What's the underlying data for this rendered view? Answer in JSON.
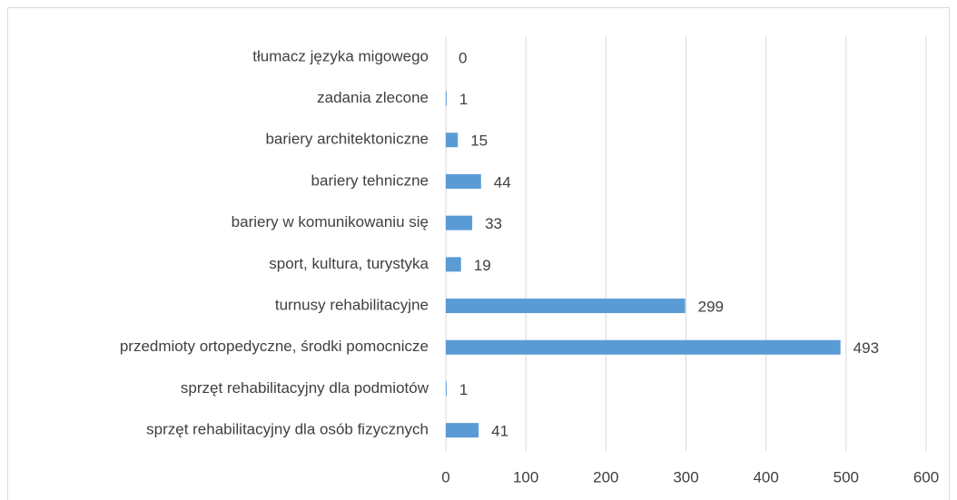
{
  "chart_data": {
    "type": "barh",
    "categories": [
      "tłumacz języka migowego",
      "zadania zlecone",
      "bariery architektoniczne",
      "bariery tehniczne",
      "bariery w komunikowaniu się",
      "sport, kultura, turystyka",
      "turnusy rehabilitacyjne",
      "przedmioty ortopedyczne, środki pomocnicze",
      "sprzęt rehabilitacyjny dla podmiotów",
      "sprzęt rehabilitacyjny dla osób fizycznych"
    ],
    "values": [
      0,
      1,
      15,
      44,
      33,
      19,
      299,
      493,
      1,
      41
    ],
    "color": "#5b9bd5",
    "xlim": [
      0,
      600
    ],
    "xticks": [
      0,
      100,
      200,
      300,
      400,
      500,
      600
    ],
    "grid": true
  }
}
